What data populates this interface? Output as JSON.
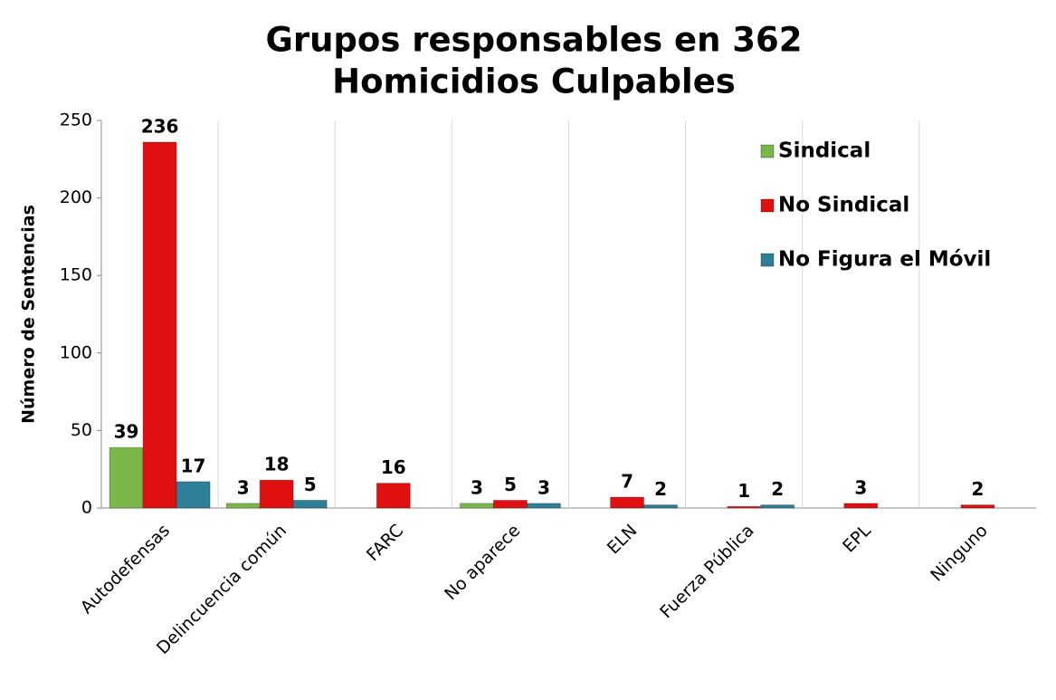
{
  "chart_data": {
    "type": "bar",
    "title": [
      "Grupos responsables en 362",
      "Homicidios Culpables"
    ],
    "y_label": "Número de Sentencias",
    "categories": [
      "Autodefensas",
      "Delincuencia común",
      "FARC",
      "No aparece",
      "ELN",
      "Fuerza Pública",
      "EPL",
      "Ninguno"
    ],
    "series": [
      {
        "name": "Sindical",
        "color": "#7ab648",
        "values": [
          39,
          3,
          null,
          3,
          null,
          null,
          null,
          null
        ]
      },
      {
        "name": "No Sindical",
        "color": "#e01010",
        "values": [
          236,
          18,
          16,
          5,
          7,
          1,
          3,
          2
        ]
      },
      {
        "name": "No Figura el Móvil",
        "color": "#2e7f97",
        "values": [
          17,
          5,
          null,
          3,
          2,
          2,
          null,
          null
        ]
      }
    ],
    "ylim": [
      0,
      250
    ],
    "yticks": [
      0,
      50,
      100,
      150,
      200,
      250
    ],
    "legend": "upper right"
  }
}
